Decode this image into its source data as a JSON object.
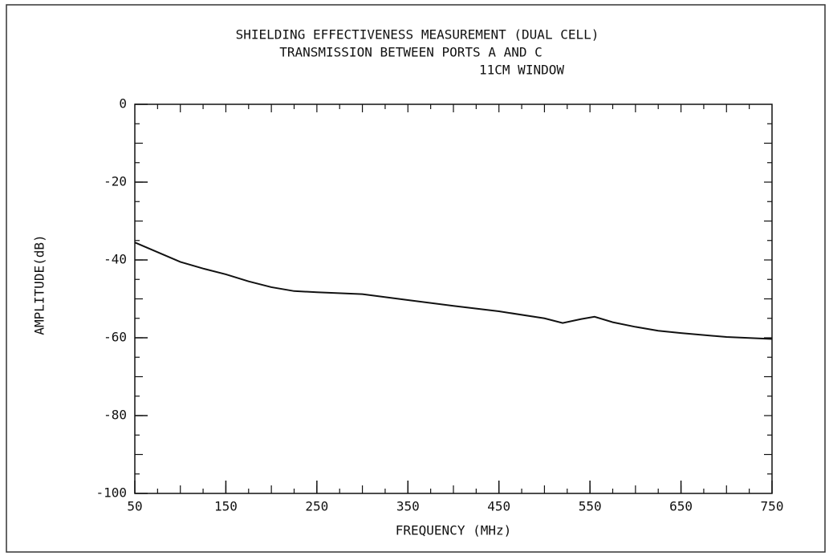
{
  "chart_data": {
    "type": "line",
    "title": [
      "SHIELDING EFFECTIVENESS MEASUREMENT (DUAL CELL)",
      "TRANSMISSION BETWEEN PORTS A AND C",
      "11CM WINDOW"
    ],
    "x_label": "FREQUENCY (MHz)",
    "y_label": "AMPLITUDE(dB)",
    "x": [
      50,
      75,
      100,
      125,
      150,
      175,
      200,
      225,
      250,
      300,
      350,
      400,
      450,
      500,
      520,
      540,
      555,
      575,
      600,
      625,
      650,
      700,
      750
    ],
    "series": [
      {
        "color": "#111111",
        "values": [
          -35.5,
          -38,
          -40.5,
          -42.2,
          -43.7,
          -45.5,
          -47,
          -48,
          -48.3,
          -48.8,
          -50.3,
          -51.8,
          -53.2,
          -55,
          -56.2,
          -55.2,
          -54.6,
          -56,
          -57.2,
          -58.2,
          -58.8,
          -59.8,
          -60.3
        ]
      }
    ],
    "xlim": [
      50,
      750
    ],
    "xticks": [
      50,
      150,
      250,
      350,
      450,
      550,
      650,
      750
    ],
    "ylim": [
      -100,
      0
    ],
    "yticks": [
      0,
      -20,
      -40,
      -60,
      -80,
      -100
    ]
  }
}
